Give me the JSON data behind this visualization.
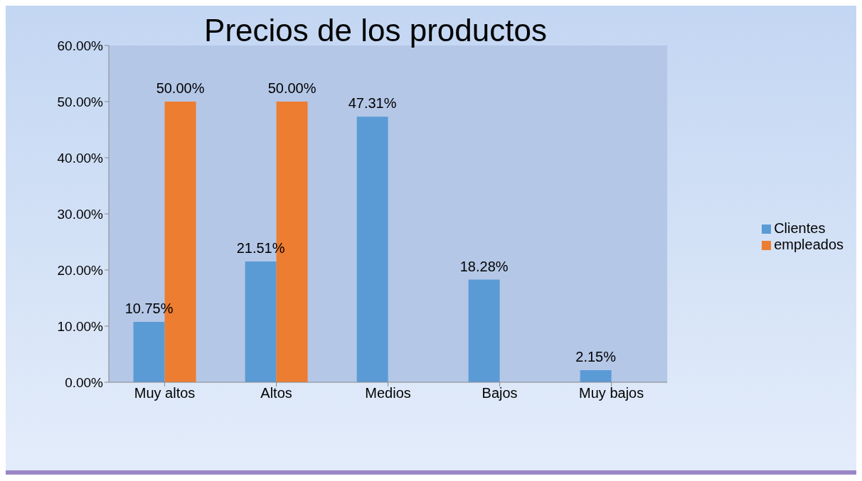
{
  "chart_data": {
    "type": "bar",
    "title": "Precios de los productos",
    "categories": [
      "Muy altos",
      "Altos",
      "Medios",
      "Bajos",
      "Muy bajos"
    ],
    "series": [
      {
        "name": "Clientes",
        "color": "#5b9bd5",
        "values": [
          10.75,
          21.51,
          47.31,
          18.28,
          2.15
        ],
        "value_labels": [
          "10.75%",
          "21.51%",
          "47.31%",
          "18.28%",
          "2.15%"
        ]
      },
      {
        "name": "empleados",
        "color": "#ed7d31",
        "values": [
          50,
          50,
          null,
          null,
          null
        ],
        "value_labels": [
          "50.00%",
          "50.00%",
          null,
          null,
          null
        ]
      }
    ],
    "ylim": [
      0,
      60
    ],
    "yticks": [
      {
        "value": 0,
        "label": "0.00%"
      },
      {
        "value": 10,
        "label": "10.00%"
      },
      {
        "value": 20,
        "label": "20.00%"
      },
      {
        "value": 30,
        "label": "30.00%"
      },
      {
        "value": 40,
        "label": "40.00%"
      },
      {
        "value": 50,
        "label": "50.00%"
      },
      {
        "value": 60,
        "label": "60.00%"
      }
    ],
    "legend": "right"
  }
}
